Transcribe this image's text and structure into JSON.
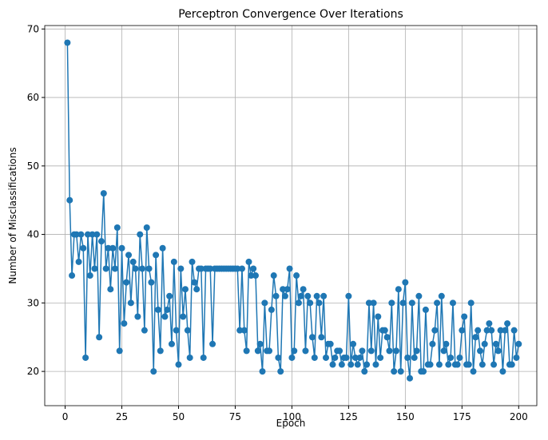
{
  "chart_data": {
    "type": "line",
    "title": "Perceptron Convergence Over Iterations",
    "xlabel": "Epoch",
    "ylabel": "Number of Misclassifications",
    "x": [
      1,
      2,
      3,
      4,
      5,
      6,
      7,
      8,
      9,
      10,
      11,
      12,
      13,
      14,
      15,
      16,
      17,
      18,
      19,
      20,
      21,
      22,
      23,
      24,
      25,
      26,
      27,
      28,
      29,
      30,
      31,
      32,
      33,
      34,
      35,
      36,
      37,
      38,
      39,
      40,
      41,
      42,
      43,
      44,
      45,
      46,
      47,
      48,
      49,
      50,
      51,
      52,
      53,
      54,
      55,
      56,
      57,
      58,
      59,
      60,
      61,
      62,
      63,
      64,
      65,
      66,
      67,
      68,
      69,
      70,
      71,
      72,
      73,
      74,
      75,
      76,
      77,
      78,
      79,
      80,
      81,
      82,
      83,
      84,
      85,
      86,
      87,
      88,
      89,
      90,
      91,
      92,
      93,
      94,
      95,
      96,
      97,
      98,
      99,
      100,
      101,
      102,
      103,
      104,
      105,
      106,
      107,
      108,
      109,
      110,
      111,
      112,
      113,
      114,
      115,
      116,
      117,
      118,
      119,
      120,
      121,
      122,
      123,
      124,
      125,
      126,
      127,
      128,
      129,
      130,
      131,
      132,
      133,
      134,
      135,
      136,
      137,
      138,
      139,
      140,
      141,
      142,
      143,
      144,
      145,
      146,
      147,
      148,
      149,
      150,
      151,
      152,
      153,
      154,
      155,
      156,
      157,
      158,
      159,
      160,
      161,
      162,
      163,
      164,
      165,
      166,
      167,
      168,
      169,
      170,
      171,
      172,
      173,
      174,
      175,
      176,
      177,
      178,
      179,
      180,
      181,
      182,
      183,
      184,
      185,
      186,
      187,
      188,
      189,
      190,
      191,
      192,
      193,
      194,
      195,
      196,
      197,
      198,
      199,
      200
    ],
    "series": [
      {
        "name": "Misclassifications",
        "color": "#1f77b4",
        "values": [
          68,
          45,
          34,
          40,
          40,
          36,
          40,
          38,
          22,
          40,
          34,
          40,
          35,
          40,
          25,
          39,
          46,
          35,
          38,
          32,
          38,
          35,
          41,
          23,
          38,
          27,
          33,
          37,
          30,
          36,
          35,
          28,
          40,
          35,
          26,
          41,
          35,
          33,
          20,
          37,
          29,
          23,
          38,
          28,
          29,
          31,
          24,
          36,
          26,
          21,
          35,
          28,
          32,
          26,
          22,
          36,
          33,
          32,
          35,
          35,
          22,
          35,
          35,
          35,
          24,
          35,
          35,
          35,
          35,
          35,
          35,
          35,
          35,
          35,
          35,
          35,
          26,
          35,
          26,
          23,
          36,
          34,
          35,
          34,
          23,
          24,
          20,
          30,
          23,
          23,
          29,
          34,
          31,
          22,
          20,
          32,
          31,
          32,
          35,
          22,
          23,
          34,
          30,
          31,
          32,
          23,
          31,
          30,
          25,
          22,
          31,
          30,
          25,
          31,
          22,
          24,
          24,
          21,
          22,
          23,
          23,
          21,
          22,
          22,
          31,
          21,
          24,
          22,
          21,
          22,
          23,
          20,
          21,
          30,
          23,
          30,
          21,
          28,
          22,
          26,
          26,
          25,
          23,
          30,
          20,
          23,
          32,
          20,
          30,
          33,
          22,
          19,
          30,
          22,
          23,
          31,
          20,
          20,
          29,
          21,
          21,
          24,
          26,
          30,
          21,
          31,
          23,
          24,
          21,
          22,
          30,
          21,
          21,
          22,
          26,
          28,
          21,
          21,
          30,
          20,
          25,
          26,
          23,
          21,
          24,
          26,
          27,
          26,
          21,
          24,
          23,
          26,
          20,
          26,
          27,
          21,
          21,
          26,
          22,
          24
        ]
      }
    ],
    "xlim": [
      -9,
      208
    ],
    "xticks": [
      0,
      25,
      50,
      75,
      100,
      125,
      150,
      175,
      200
    ],
    "ylim": [
      15,
      70.5
    ],
    "yticks": [
      20,
      30,
      40,
      50,
      60,
      70
    ],
    "grid": true
  }
}
